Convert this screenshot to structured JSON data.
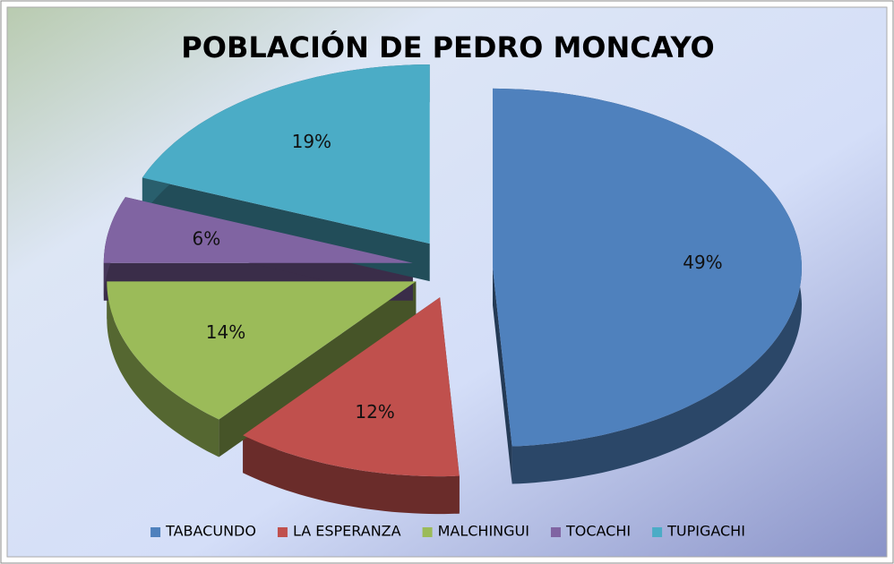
{
  "chart_data": {
    "type": "pie",
    "title": "POBLACIÓN DE PEDRO MONCAYO",
    "categories": [
      "TABACUNDO",
      "LA ESPERANZA",
      "MALCHINGUI",
      "TOCACHI",
      "TUPIGACHI"
    ],
    "values": [
      49,
      12,
      14,
      6,
      19
    ],
    "value_labels": [
      "49%",
      "12%",
      "14%",
      "6%",
      "19%"
    ],
    "colors": [
      "#4f81bd",
      "#c0504d",
      "#9bbb59",
      "#8064a2",
      "#4bacc6"
    ],
    "legend": "bottom"
  }
}
